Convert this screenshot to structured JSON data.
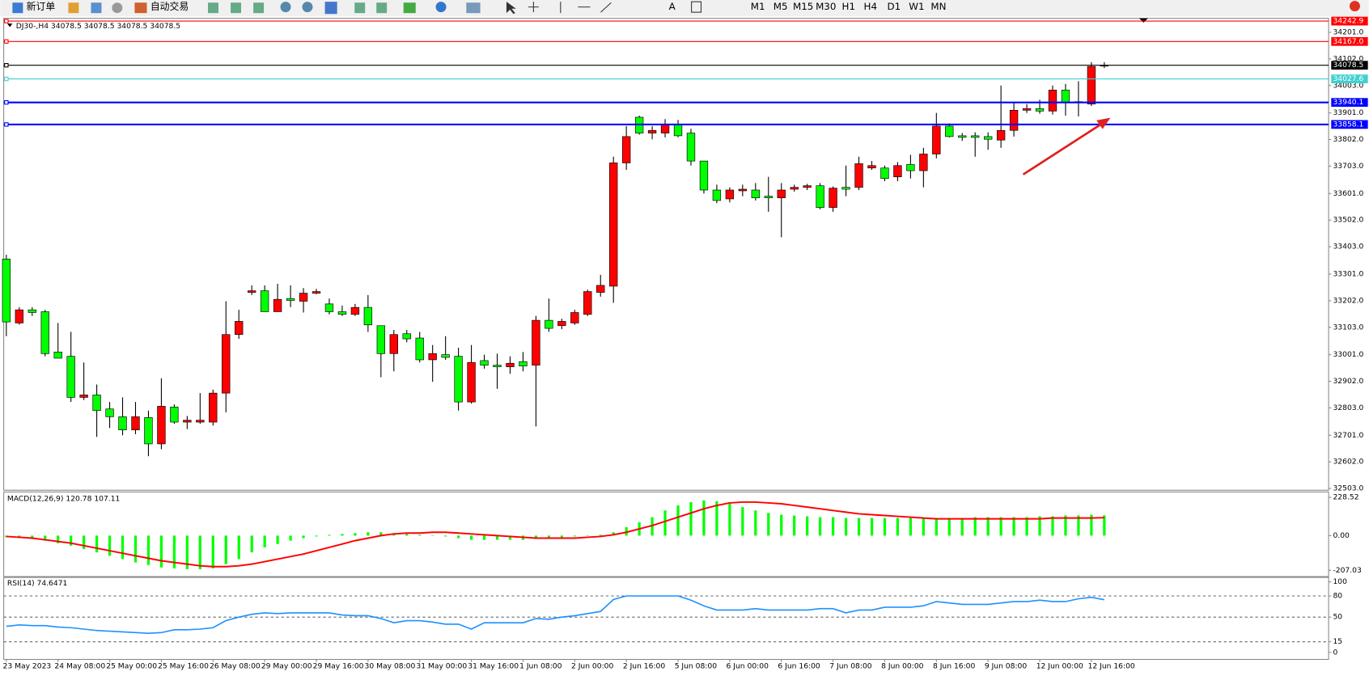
{
  "toolbar": {
    "new_order": "新订单",
    "auto_trade": "自动交易",
    "timeframes": [
      "M1",
      "M5",
      "M15",
      "M30",
      "H1",
      "H4",
      "D1",
      "W1",
      "MN"
    ]
  },
  "chart_data": [
    {
      "type": "candlestick",
      "title": "DJ30-,H4  34078.5 34078.5 34078.5 34078.5",
      "up_color": "#ff0000",
      "down_color": "#00ff00",
      "categories": [
        "23 May 2023",
        null,
        null,
        null,
        "24 May 08:00",
        null,
        null,
        null,
        "25 May 00:00",
        null,
        null,
        null,
        "25 May 16:00",
        null,
        null,
        null,
        "26 May 08:00",
        null,
        null,
        null,
        "29 May 00:00",
        null,
        null,
        null,
        "29 May 16:00",
        null,
        null,
        null,
        "30 May 08:00",
        null,
        null,
        null,
        "31 May 00:00",
        null,
        null,
        null,
        "31 May 16:00",
        null,
        null,
        null,
        "1 Jun 08:00",
        null,
        null,
        null,
        "2 Jun 00:00",
        null,
        null,
        null,
        "2 Jun 16:00",
        null,
        null,
        null,
        "5 Jun 08:00",
        null,
        null,
        null,
        "6 Jun 00:00",
        null,
        null,
        null,
        "6 Jun 16:00",
        null,
        null,
        null,
        "7 Jun 08:00",
        null,
        null,
        null,
        "8 Jun 00:00",
        null,
        null,
        null,
        "8 Jun 16:00",
        null,
        null,
        null,
        "9 Jun 08:00",
        null,
        null,
        null,
        "12 Jun 00:00",
        null,
        null,
        null,
        "12 Jun 16:00",
        null
      ],
      "open": [
        33357,
        33119,
        33168,
        33161,
        33011,
        32995,
        32842,
        32851,
        32799,
        32770,
        32721,
        32767,
        32669,
        32806,
        32750,
        32750,
        32750,
        32858,
        33076,
        33233,
        33239,
        33161,
        33210,
        33200,
        33230,
        33190,
        33161,
        33151,
        33177,
        33109,
        33005,
        33079,
        33063,
        32982,
        33001,
        32995,
        32825,
        32979,
        32962,
        32956,
        32975,
        32962,
        33129,
        33109,
        33119,
        33151,
        33233,
        33256,
        33715,
        33885,
        33826,
        33826,
        33859,
        33826,
        33722,
        33614,
        33581,
        33611,
        33614,
        33591,
        33585,
        33617,
        33624,
        33630,
        33549,
        33624,
        33624,
        33696,
        33696,
        33663,
        33709,
        33686,
        33748,
        33852,
        33816,
        33816,
        33813,
        33800,
        33836,
        33911,
        33917,
        33908,
        33986,
        33943,
        33934,
        34078.5
      ],
      "high": [
        33373,
        33178,
        33178,
        33168,
        33119,
        33086,
        32972,
        32890,
        32825,
        32842,
        32825,
        32793,
        32913,
        32816,
        32773,
        32858,
        32871,
        33200,
        33168,
        33259,
        33259,
        33265,
        33259,
        33249,
        33246,
        33210,
        33184,
        33190,
        33223,
        33109,
        33093,
        33093,
        33086,
        33037,
        33070,
        33027,
        33037,
        33001,
        33005,
        32995,
        33011,
        33145,
        33210,
        33135,
        33168,
        33243,
        33298,
        33738,
        33852,
        33891,
        33852,
        33878,
        33875,
        33842,
        33722,
        33634,
        33624,
        33634,
        33640,
        33663,
        33640,
        33634,
        33637,
        33640,
        33627,
        33705,
        33738,
        33722,
        33705,
        33718,
        33745,
        33771,
        33901,
        33862,
        33826,
        33829,
        33829,
        34003,
        33940,
        33934,
        33950,
        34003,
        34009,
        34019,
        34090,
        34090
      ],
      "low": [
        33070,
        33113,
        33145,
        32995,
        32988,
        32825,
        32832,
        32695,
        32728,
        32701,
        32705,
        32623,
        32649,
        32744,
        32724,
        32744,
        32737,
        32786,
        33060,
        33223,
        33161,
        33161,
        33178,
        33158,
        33226,
        33151,
        33145,
        33145,
        33086,
        32917,
        32939,
        33047,
        32972,
        32900,
        32982,
        32793,
        32819,
        32949,
        32874,
        32930,
        32939,
        32734,
        33086,
        33096,
        33112,
        33145,
        33217,
        33194,
        33689,
        33820,
        33803,
        33810,
        33810,
        33705,
        33601,
        33565,
        33568,
        33591,
        33575,
        33533,
        33438,
        33608,
        33614,
        33542,
        33533,
        33591,
        33614,
        33689,
        33647,
        33647,
        33657,
        33624,
        33732,
        33810,
        33797,
        33738,
        33764,
        33771,
        33813,
        33901,
        33898,
        33895,
        33891,
        33888,
        33927,
        34068
      ],
      "close": [
        33123,
        33168,
        33158,
        33005,
        32988,
        32842,
        32851,
        32793,
        32770,
        32721,
        32770,
        32669,
        32809,
        32750,
        32757,
        32757,
        32858,
        33076,
        33125,
        33239,
        33161,
        33207,
        33203,
        33230,
        33236,
        33161,
        33151,
        33177,
        33112,
        33005,
        33076,
        33060,
        32982,
        33005,
        32991,
        32825,
        32972,
        32962,
        32956,
        32969,
        32959,
        33129,
        33099,
        33125,
        33158,
        33236,
        33259,
        33715,
        33813,
        33826,
        33836,
        33859,
        33816,
        33722,
        33614,
        33575,
        33614,
        33617,
        33585,
        33585,
        33614,
        33624,
        33630,
        33549,
        33621,
        33617,
        33712,
        33705,
        33657,
        33705,
        33686,
        33748,
        33852,
        33813,
        33810,
        33810,
        33803,
        33836,
        33911,
        33917,
        33908,
        33986,
        33940,
        33940,
        34074,
        34078.5
      ],
      "ylim": [
        32496.5,
        34253.2
      ],
      "yticks": [
        {
          "value": 34201,
          "label": "34201.0"
        },
        {
          "value": 34102,
          "label": "34102.0"
        },
        {
          "value": 34003,
          "label": "34003.0"
        },
        {
          "value": 33901,
          "label": "33901.0"
        },
        {
          "value": 33802,
          "label": "33802.0"
        },
        {
          "value": 33703,
          "label": "33703.0"
        },
        {
          "value": 33601,
          "label": "33601.0"
        },
        {
          "value": 33502,
          "label": "33502.0"
        },
        {
          "value": 33403,
          "label": "33403.0"
        },
        {
          "value": 33301,
          "label": "33301.0"
        },
        {
          "value": 33202,
          "label": "33202.0"
        },
        {
          "value": 33103,
          "label": "33103.0"
        },
        {
          "value": 33001,
          "label": "33001.0"
        },
        {
          "value": 32902,
          "label": "32902.0"
        },
        {
          "value": 32803,
          "label": "32803.0"
        },
        {
          "value": 32701,
          "label": "32701.0"
        },
        {
          "value": 32602,
          "label": "32602.0"
        },
        {
          "value": 32503,
          "label": "32503.0"
        }
      ],
      "levels": [
        {
          "value": 34242.9,
          "color": "#ff0000"
        },
        {
          "value": 34167,
          "label": "34167.0",
          "color": "#ff0000"
        },
        {
          "value": 34078.5,
          "color": "#000000"
        },
        {
          "value": 34027.6,
          "color": "#40d0d0"
        },
        {
          "value": 33940.1,
          "color": "#0000ff"
        },
        {
          "value": 33858.1,
          "color": "#0000ff"
        }
      ]
    },
    {
      "type": "macd",
      "title": "MACD(12,26,9) 120.78 107.11",
      "ylim": [
        -244.2,
        260.4
      ],
      "yticks": [
        228.52,
        {
          "value": 0,
          "label": "0.00"
        },
        -207.03
      ],
      "histogram": {
        "color": "#00ff00",
        "values": [
          -10,
          -15,
          -20,
          -30,
          -45,
          -60,
          -80,
          -100,
          -120,
          -140,
          -160,
          -175,
          -190,
          -195,
          -200,
          -200,
          -195,
          -170,
          -140,
          -100,
          -70,
          -50,
          -30,
          -15,
          -5,
          5,
          10,
          15,
          20,
          20,
          15,
          10,
          5,
          0,
          -5,
          -15,
          -25,
          -25,
          -25,
          -25,
          -25,
          -20,
          -15,
          -10,
          -5,
          0,
          5,
          20,
          50,
          80,
          110,
          150,
          180,
          200,
          210,
          205,
          190,
          170,
          150,
          135,
          125,
          120,
          115,
          110,
          110,
          105,
          105,
          105,
          105,
          105,
          105,
          105,
          105,
          105,
          105,
          110,
          110,
          110,
          110,
          110,
          115,
          115,
          120,
          120,
          125,
          120.78
        ]
      },
      "signal": {
        "color": "#ff0000",
        "values": [
          -5,
          -10,
          -15,
          -25,
          -35,
          -45,
          -60,
          -75,
          -90,
          -105,
          -120,
          -135,
          -150,
          -160,
          -170,
          -180,
          -185,
          -185,
          -180,
          -170,
          -155,
          -140,
          -125,
          -110,
          -90,
          -70,
          -50,
          -30,
          -15,
          0,
          10,
          15,
          15,
          20,
          20,
          15,
          10,
          5,
          0,
          -5,
          -10,
          -15,
          -15,
          -15,
          -15,
          -10,
          -5,
          5,
          20,
          40,
          60,
          85,
          110,
          135,
          160,
          180,
          195,
          200,
          200,
          195,
          190,
          180,
          170,
          160,
          150,
          140,
          130,
          125,
          120,
          115,
          110,
          105,
          100,
          100,
          100,
          100,
          100,
          100,
          100,
          100,
          100,
          105,
          105,
          105,
          105,
          107.11
        ]
      }
    },
    {
      "type": "rsi",
      "title": "RSI(14) 74.6471",
      "color": "#1e90ff",
      "ylim": [
        -10,
        106.25
      ],
      "yticks": [
        100,
        80,
        50,
        15,
        0
      ],
      "values": [
        37,
        39,
        38,
        38,
        36,
        35,
        33,
        31,
        30,
        29,
        28,
        27,
        28,
        32,
        32,
        33,
        35,
        45,
        50,
        54,
        56,
        55,
        56,
        56,
        56,
        56,
        53,
        52,
        52,
        48,
        42,
        45,
        45,
        43,
        40,
        40,
        33,
        42,
        42,
        42,
        42,
        48,
        47,
        50,
        52,
        55,
        58,
        75,
        80,
        80,
        80,
        80,
        80,
        74,
        66,
        60,
        60,
        60,
        62,
        60,
        60,
        60,
        60,
        62,
        62,
        56,
        60,
        60,
        64,
        64,
        64,
        66,
        72,
        70,
        68,
        68,
        68,
        70,
        72,
        72,
        74,
        72,
        72,
        76,
        78,
        74.6471
      ]
    }
  ]
}
